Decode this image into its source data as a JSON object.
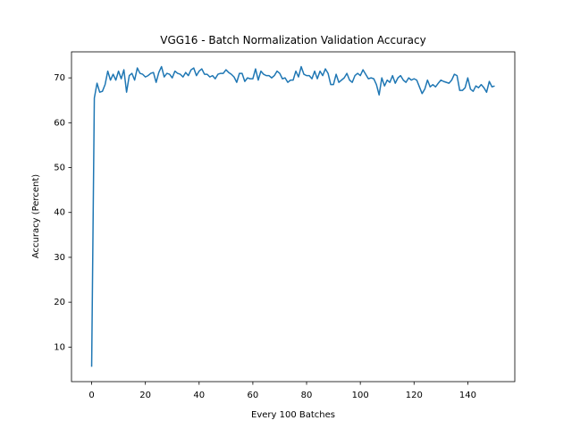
{
  "chart_data": {
    "type": "line",
    "title": "VGG16 - Batch Normalization Validation Accuracy",
    "x_label": "Every 100 Batches",
    "y_label": "Accuracy (Percent)",
    "xlim": [
      -7.5,
      157.5
    ],
    "ylim": [
      2.3,
      75.8
    ],
    "xticks": [
      0,
      20,
      40,
      60,
      80,
      100,
      120,
      140
    ],
    "yticks": [
      10,
      20,
      30,
      40,
      50,
      60,
      70
    ],
    "grid": false,
    "series": [
      {
        "color": "#1f77b4",
        "x": [
          0,
          1,
          2,
          3,
          4,
          5,
          6,
          7,
          8,
          9,
          10,
          11,
          12,
          13,
          14,
          15,
          16,
          17,
          18,
          19,
          20,
          21,
          22,
          23,
          24,
          25,
          26,
          27,
          28,
          29,
          30,
          31,
          32,
          33,
          34,
          35,
          36,
          37,
          38,
          39,
          40,
          41,
          42,
          43,
          44,
          45,
          46,
          47,
          48,
          49,
          50,
          51,
          52,
          53,
          54,
          55,
          56,
          57,
          58,
          59,
          60,
          61,
          62,
          63,
          64,
          65,
          66,
          67,
          68,
          69,
          70,
          71,
          72,
          73,
          74,
          75,
          76,
          77,
          78,
          79,
          80,
          81,
          82,
          83,
          84,
          85,
          86,
          87,
          88,
          89,
          90,
          91,
          92,
          93,
          94,
          95,
          96,
          97,
          98,
          99,
          100,
          101,
          102,
          103,
          104,
          105,
          106,
          107,
          108,
          109,
          110,
          111,
          112,
          113,
          114,
          115,
          116,
          117,
          118,
          119,
          120,
          121,
          122,
          123,
          124,
          125,
          126,
          127,
          128,
          129,
          130,
          131,
          132,
          133,
          134,
          135,
          136,
          137,
          138,
          139,
          140,
          141,
          142,
          143,
          144,
          145,
          146,
          147,
          148,
          149,
          150
        ],
        "values": [
          5.6,
          65.5,
          68.8,
          66.8,
          67,
          68.5,
          71.5,
          69.5,
          70.8,
          69.5,
          71.5,
          69.8,
          71.8,
          66.8,
          70.5,
          71,
          69.5,
          72.2,
          71,
          70.8,
          70.2,
          70.5,
          71,
          71.2,
          69,
          71.2,
          72.5,
          70.2,
          71,
          70.8,
          70,
          71.5,
          71,
          70.8,
          70.2,
          71.2,
          70.5,
          71.8,
          72.2,
          70.5,
          71.5,
          72,
          70.8,
          70.8,
          70.2,
          70.5,
          69.8,
          70.8,
          71,
          71,
          71.8,
          71.2,
          70.8,
          70.2,
          69,
          71,
          71,
          69.2,
          70,
          69.8,
          69.8,
          72,
          69.5,
          71.5,
          70.8,
          70.5,
          70.5,
          70,
          70.5,
          71.5,
          71,
          69.8,
          70,
          69,
          69.5,
          69.5,
          71.5,
          70.2,
          72.5,
          70.8,
          70.5,
          70.5,
          69.8,
          71.5,
          69.8,
          71.5,
          70.5,
          72,
          71,
          68.5,
          68.5,
          70.8,
          69,
          69.5,
          70,
          71,
          69.5,
          69,
          70.5,
          71,
          70.5,
          71.8,
          70.8,
          69.8,
          70,
          69.8,
          68.5,
          66.2,
          70,
          68.2,
          69.5,
          69,
          70.5,
          68.8,
          70,
          70.5,
          69.5,
          69,
          70,
          69.5,
          69.8,
          69.5,
          68,
          66.5,
          67.5,
          69.5,
          68,
          68.5,
          68,
          68.8,
          69.5,
          69.2,
          69,
          68.8,
          69.5,
          70.8,
          70.5,
          67.2,
          67.2,
          67.8,
          70,
          67.5,
          67,
          68.2,
          67.8,
          68.5,
          67.8,
          66.8,
          69.2,
          68,
          68.2
        ]
      }
    ]
  }
}
